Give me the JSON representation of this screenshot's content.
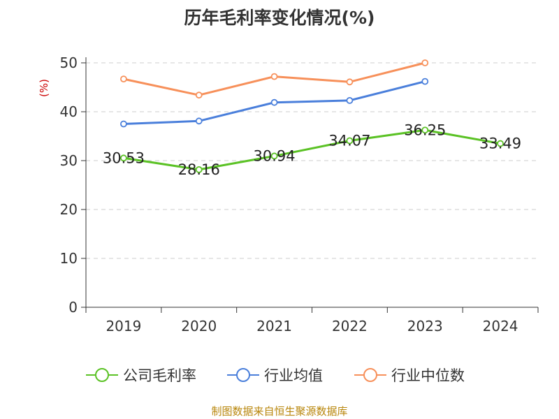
{
  "title": "历年毛利率变化情况(%)",
  "source_text": "制图数据来自恒生聚源数据库",
  "colors": {
    "company": "#5bc225",
    "industry_avg": "#4a7fdb",
    "industry_median": "#f7905a",
    "ylabel": "#cc0000",
    "grid": "#cccccc",
    "axis": "#333333",
    "source": "#b8860b"
  },
  "chart_data": {
    "type": "line",
    "title": "历年毛利率变化情况(%)",
    "xlabel": "",
    "ylabel": "(%)",
    "categories": [
      "2019",
      "2020",
      "2021",
      "2022",
      "2023",
      "2024"
    ],
    "ylim": [
      0,
      50
    ],
    "yticks": [
      0,
      10,
      20,
      30,
      40,
      50
    ],
    "grid": "horizontal dashed",
    "legend_position": "bottom",
    "series": [
      {
        "name": "公司毛利率",
        "color": "#5bc225",
        "values": [
          30.53,
          28.16,
          30.94,
          34.07,
          36.25,
          33.49
        ],
        "labels": [
          "30.53",
          "28.16",
          "30.94",
          "34.07",
          "36.25",
          "33.49"
        ]
      },
      {
        "name": "行业均值",
        "color": "#4a7fdb",
        "values": [
          37.5,
          38.1,
          41.9,
          42.3,
          46.2,
          null
        ]
      },
      {
        "name": "行业中位数",
        "color": "#f7905a",
        "values": [
          46.7,
          43.4,
          47.2,
          46.1,
          50.0,
          null
        ]
      }
    ]
  }
}
